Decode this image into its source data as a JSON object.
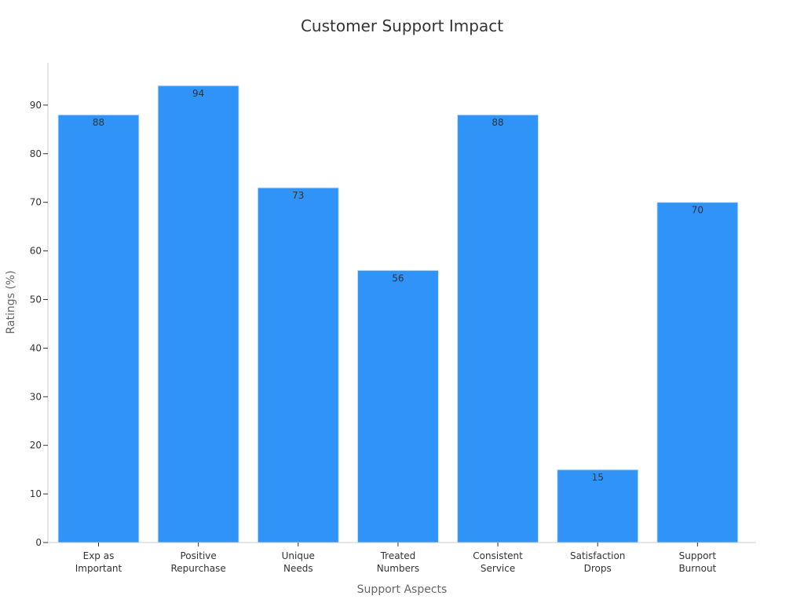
{
  "chart_data": {
    "type": "bar",
    "title": "Customer Support Impact",
    "xlabel": "Support Aspects",
    "ylabel": "Ratings (%)",
    "categories": [
      [
        "Exp as",
        "Important"
      ],
      [
        "Positive",
        "Repurchase"
      ],
      [
        "Unique",
        "Needs"
      ],
      [
        "Treated",
        "Numbers"
      ],
      [
        "Consistent",
        "Service"
      ],
      [
        "Satisfaction",
        "Drops"
      ],
      [
        "Support",
        "Burnout"
      ]
    ],
    "values": [
      88,
      94,
      73,
      56,
      88,
      15,
      70
    ],
    "ylim": [
      0,
      98.7
    ],
    "yticks": [
      0,
      10,
      20,
      30,
      40,
      50,
      60,
      70,
      80,
      90
    ],
    "grid": false,
    "bar_color": "#2f93f8",
    "bar_edge_color": "#cfe3f7",
    "axis_color": "#cccccc"
  }
}
